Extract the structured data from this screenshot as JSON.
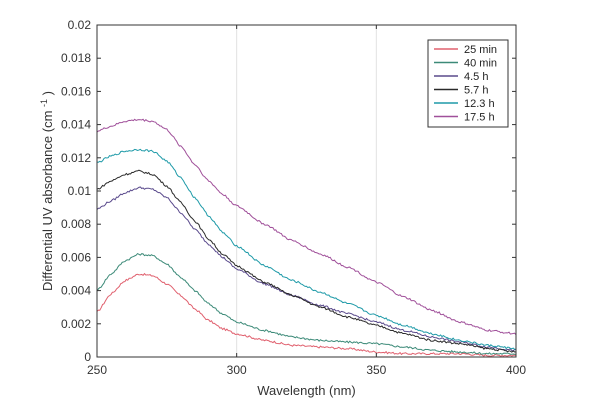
{
  "chart_data": {
    "type": "line",
    "title": "",
    "xlabel": "Wavelength (nm)",
    "ylabel_main": "Differential UV absorbance (cm",
    "ylabel_sup": "-1",
    "ylabel_close": ")",
    "xlim": [
      250,
      400
    ],
    "ylim": [
      0,
      0.02
    ],
    "x_ticks": [
      250,
      300,
      350,
      400
    ],
    "x_tick_labels": [
      "250",
      "300",
      "350",
      "400"
    ],
    "y_ticks": [
      0,
      0.002,
      0.004,
      0.006,
      0.008,
      0.01,
      0.012,
      0.014,
      0.016,
      0.018,
      0.02
    ],
    "y_tick_labels": [
      "0",
      "0.002",
      "0.004",
      "0.006",
      "0.008",
      "0.01",
      "0.012",
      "0.014",
      "0.016",
      "0.018",
      "0.02"
    ],
    "grid": true,
    "legend_position": "top-right",
    "x": [
      250,
      255,
      260,
      265,
      270,
      275,
      280,
      285,
      290,
      295,
      300,
      310,
      320,
      330,
      340,
      350,
      360,
      370,
      380,
      390,
      400
    ],
    "series": [
      {
        "name": "25 min",
        "color": "#e0606e",
        "values": [
          0.0027,
          0.0038,
          0.0046,
          0.005,
          0.0049,
          0.0044,
          0.0037,
          0.0029,
          0.0022,
          0.0017,
          0.0014,
          0.001,
          0.0007,
          0.0006,
          0.0005,
          0.0003,
          0.0002,
          0.0002,
          0.0002,
          0.0001,
          0.0001
        ]
      },
      {
        "name": "40 min",
        "color": "#3c8a78",
        "values": [
          0.004,
          0.005,
          0.0058,
          0.0062,
          0.0061,
          0.0056,
          0.0048,
          0.004,
          0.0032,
          0.0026,
          0.0021,
          0.0016,
          0.0012,
          0.001,
          0.0009,
          0.0008,
          0.0006,
          0.0004,
          0.0003,
          0.0002,
          0.0002
        ]
      },
      {
        "name": "4.5 h",
        "color": "#5a4a8c",
        "values": [
          0.0089,
          0.0094,
          0.0099,
          0.0102,
          0.0101,
          0.0096,
          0.0087,
          0.0077,
          0.0068,
          0.006,
          0.0053,
          0.0044,
          0.0037,
          0.0031,
          0.0026,
          0.0021,
          0.0016,
          0.0012,
          0.0009,
          0.0006,
          0.0004
        ]
      },
      {
        "name": "5.7 h",
        "color": "#2a2a2a",
        "values": [
          0.0101,
          0.0106,
          0.011,
          0.0112,
          0.011,
          0.0103,
          0.0093,
          0.0082,
          0.0071,
          0.0062,
          0.0055,
          0.0045,
          0.0037,
          0.003,
          0.0024,
          0.0019,
          0.0014,
          0.001,
          0.0008,
          0.0005,
          0.0003
        ]
      },
      {
        "name": "12.3 h",
        "color": "#1e9aa8",
        "values": [
          0.0117,
          0.0121,
          0.0124,
          0.0125,
          0.0124,
          0.0118,
          0.0108,
          0.0096,
          0.0085,
          0.0075,
          0.0067,
          0.0055,
          0.0046,
          0.0039,
          0.0032,
          0.0025,
          0.0019,
          0.0014,
          0.001,
          0.0007,
          0.0005
        ]
      },
      {
        "name": "17.5 h",
        "color": "#a0509a",
        "values": [
          0.0136,
          0.0139,
          0.0142,
          0.0143,
          0.0142,
          0.0137,
          0.0127,
          0.0116,
          0.0106,
          0.0098,
          0.0091,
          0.008,
          0.007,
          0.0062,
          0.0054,
          0.0045,
          0.0036,
          0.0028,
          0.0021,
          0.0016,
          0.0014
        ]
      }
    ]
  }
}
